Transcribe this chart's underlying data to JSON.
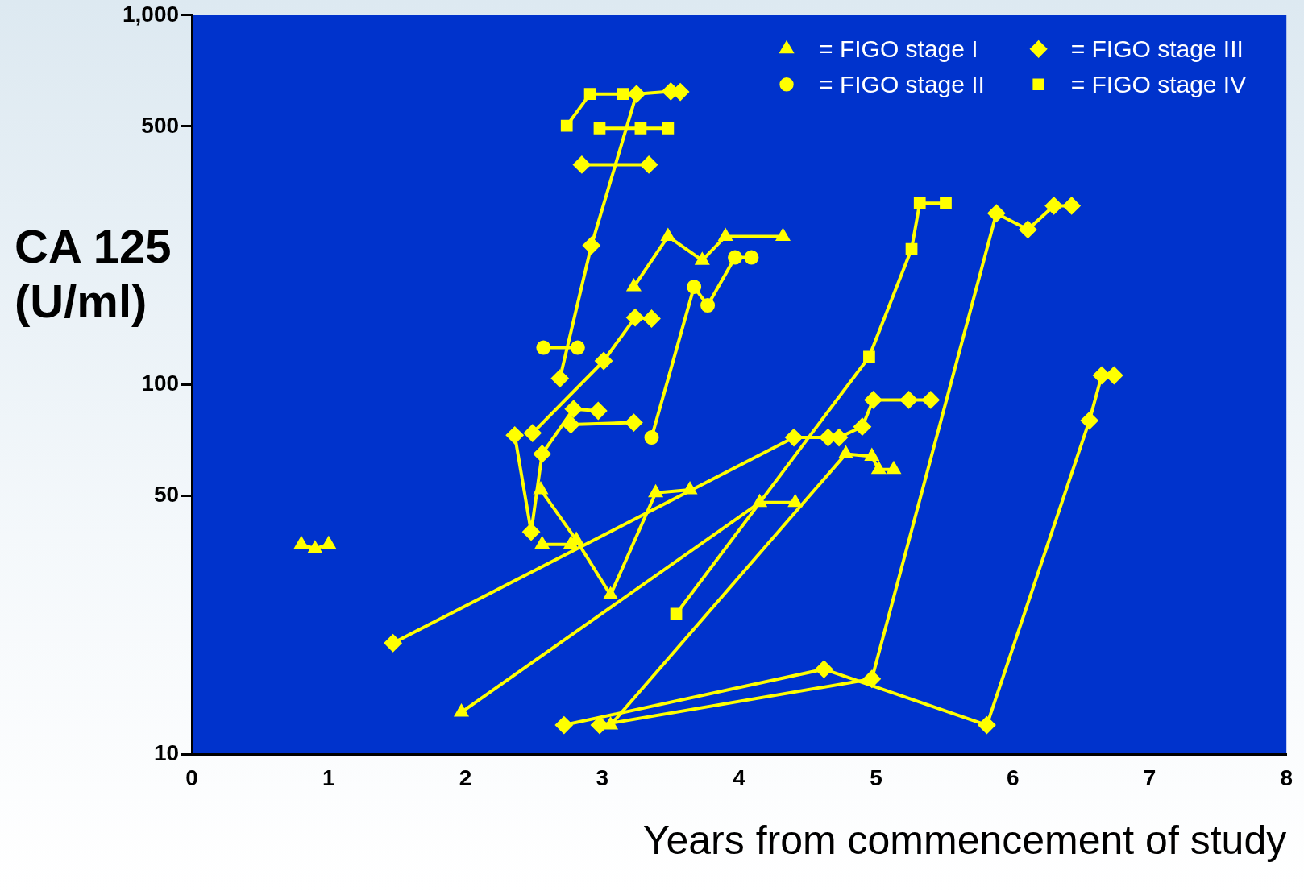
{
  "chart_data": {
    "type": "line",
    "xlabel": "Years from commencement of study",
    "ylabel": "CA 125 (U/ml)",
    "xlim": [
      0,
      8
    ],
    "xticks": [
      0,
      1,
      2,
      3,
      4,
      5,
      6,
      7,
      8
    ],
    "ylim": [
      10,
      1000
    ],
    "yticks": [
      10,
      50,
      100,
      500,
      {
        "value": 1000,
        "label": "1,000"
      }
    ],
    "log": true,
    "legend": "top right",
    "series": [
      {
        "name": "= FIGO stage I",
        "color": "#ffff00",
        "marker": "triangle",
        "x": [
          0.8,
          0.9,
          1.0
        ],
        "values": [
          37,
          36,
          37
        ]
      },
      {
        "color": "#ffff00",
        "marker": "triangle",
        "x": [
          2.55,
          2.81,
          3.06,
          3.39,
          3.64
        ],
        "values": [
          52,
          38,
          27,
          51,
          52
        ]
      },
      {
        "color": "#ffff00",
        "marker": "triangle",
        "x": [
          2.56,
          2.77
        ],
        "values": [
          37,
          37
        ]
      },
      {
        "color": "#ffff00",
        "marker": "triangle",
        "x": [
          1.97,
          4.15,
          4.41
        ],
        "values": [
          13,
          48,
          48
        ]
      },
      {
        "color": "#ffff00",
        "marker": "triangle",
        "x": [
          3.06,
          4.78,
          4.97,
          5.02,
          5.13
        ],
        "values": [
          12,
          65,
          64,
          59,
          59
        ]
      },
      {
        "color": "#ffff00",
        "marker": "triangle",
        "x": [
          3.23,
          3.48,
          3.73,
          3.9,
          4.32
        ],
        "values": [
          184,
          252,
          217,
          252,
          252
        ]
      },
      {
        "name": "= FIGO stage II",
        "color": "#ffff00",
        "marker": "circle",
        "x": [
          2.57,
          2.82
        ],
        "values": [
          126,
          126
        ]
      },
      {
        "color": "#ffff00",
        "marker": "circle",
        "x": [
          3.36,
          3.67,
          3.77,
          3.97,
          4.09
        ],
        "values": [
          72,
          184,
          164,
          221,
          221
        ]
      },
      {
        "name": "= FIGO stage III",
        "color": "#ffff00",
        "marker": "diamond",
        "x": [
          2.69,
          2.92,
          3.25,
          3.5,
          3.57
        ],
        "values": [
          104,
          238,
          612,
          622,
          620
        ]
      },
      {
        "color": "#ffff00",
        "marker": "diamond",
        "x": [
          2.85,
          3.34
        ],
        "values": [
          394,
          394
        ]
      },
      {
        "color": "#ffff00",
        "marker": "diamond",
        "x": [
          2.36,
          2.48,
          2.56,
          2.79,
          2.97
        ],
        "values": [
          73,
          40,
          65,
          86,
          85
        ]
      },
      {
        "color": "#ffff00",
        "marker": "diamond",
        "x": [
          2.77,
          3.23
        ],
        "values": [
          78,
          79
        ]
      },
      {
        "color": "#ffff00",
        "marker": "diamond",
        "x": [
          2.49,
          3.01,
          3.24,
          3.36
        ],
        "values": [
          74,
          116,
          152,
          151
        ]
      },
      {
        "color": "#ffff00",
        "marker": "diamond",
        "x": [
          1.47,
          4.4,
          4.65,
          4.73,
          4.9,
          4.98,
          5.24,
          5.4
        ],
        "values": [
          20,
          72,
          72,
          72,
          77,
          91,
          91,
          91
        ]
      },
      {
        "color": "#ffff00",
        "marker": "diamond",
        "x": [
          2.72,
          4.62,
          5.81,
          6.56,
          6.65,
          6.74
        ],
        "values": [
          12,
          17,
          12,
          80,
          106,
          106
        ]
      },
      {
        "color": "#ffff00",
        "marker": "diamond",
        "x": [
          2.98,
          4.97,
          5.88,
          6.11,
          6.3,
          6.43
        ],
        "values": [
          12,
          16,
          291,
          263,
          305,
          305
        ]
      },
      {
        "name": "= FIGO stage IV",
        "color": "#ffff00",
        "marker": "square",
        "x": [
          2.74,
          2.91,
          3.15
        ],
        "values": [
          502,
          612,
          612
        ]
      },
      {
        "color": "#ffff00",
        "marker": "square",
        "x": [
          2.98,
          3.28,
          3.48
        ],
        "values": [
          494,
          494,
          494
        ]
      },
      {
        "color": "#ffff00",
        "marker": "square",
        "x": [
          3.54,
          4.95,
          5.26,
          5.32,
          5.51
        ],
        "values": [
          24,
          119,
          233,
          310,
          310
        ]
      }
    ]
  }
}
